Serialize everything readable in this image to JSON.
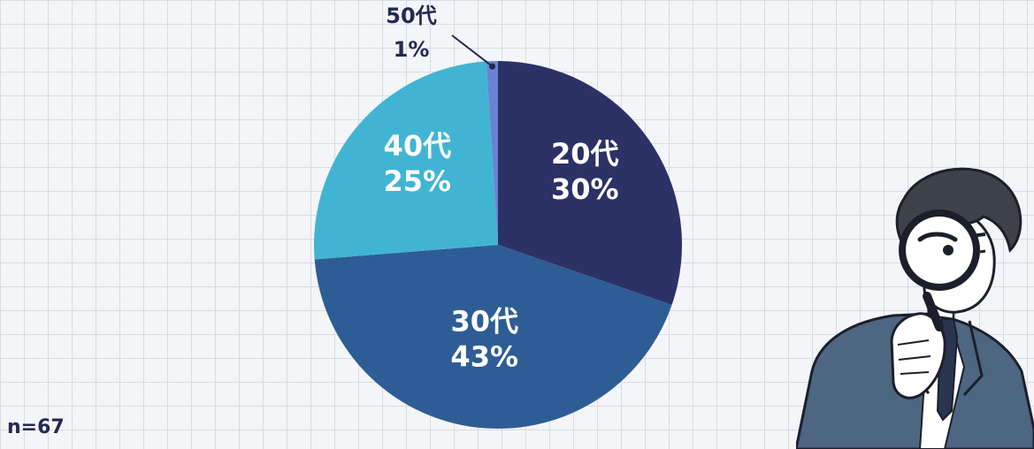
{
  "chart_data": {
    "type": "pie",
    "slices": [
      {
        "label": "20代",
        "value": 30,
        "value_label": "30%",
        "color": "#2c3166",
        "text_color": "#ffffff"
      },
      {
        "label": "30代",
        "value": 43,
        "value_label": "43%",
        "color": "#2e5d96",
        "text_color": "#ffffff"
      },
      {
        "label": "40代",
        "value": 25,
        "value_label": "25%",
        "color": "#41b4d4",
        "text_color": "#ffffff"
      },
      {
        "label": "50代",
        "value": 1,
        "value_label": "1%",
        "color": "#6a82d4",
        "text_color": "#24294f"
      }
    ],
    "start_angle_deg": 0,
    "direction": "clockwise"
  },
  "footer": {
    "sample_size": "n=67"
  },
  "illustration": {
    "icon": "man-with-magnifying-glass"
  }
}
